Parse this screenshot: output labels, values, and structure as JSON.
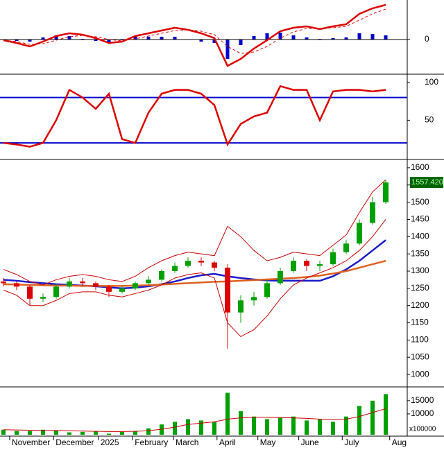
{
  "chart_data": [
    {
      "type": "macd",
      "xlim": [
        -0.263,
        30.63
      ],
      "ylim": [
        -48,
        57
      ],
      "yticks": [
        0
      ],
      "macd": {
        "color": "#dd0000",
        "values": [
          -1,
          -5,
          -10,
          -3,
          5,
          9,
          7,
          2,
          -5,
          -3,
          5,
          9,
          13,
          17,
          14,
          9,
          2,
          -38,
          -28,
          -13,
          -1,
          12,
          17,
          19,
          15,
          19,
          22,
          37,
          45,
          50
        ]
      },
      "signal": {
        "color": "#dd0000",
        "values": [
          -1,
          -3,
          -7,
          -6,
          -1,
          4,
          6,
          4,
          0,
          -2,
          1,
          5,
          9,
          13,
          14,
          12,
          7,
          -10,
          -20,
          -18,
          -10,
          2,
          11,
          16,
          16,
          17,
          19,
          28,
          37,
          44
        ]
      },
      "histogram": {
        "color": "#0000cc",
        "values": [
          0,
          -2,
          -3,
          3,
          6,
          5,
          1,
          -2,
          -5,
          -1,
          4,
          4,
          4,
          4,
          0,
          -3,
          -5,
          -28,
          -8,
          5,
          9,
          10,
          6,
          3,
          -1,
          2,
          3,
          9,
          8,
          6
        ]
      }
    },
    {
      "type": "stochastic",
      "xlim": [
        -0.263,
        30.63
      ],
      "ylim": [
        0,
        108
      ],
      "yticks": [
        100,
        50
      ],
      "hlines": [
        80,
        20
      ],
      "hline_color": "#0000cc",
      "line": {
        "color": "#dd0000",
        "values": [
          20,
          18,
          15,
          20,
          50,
          90,
          80,
          65,
          85,
          25,
          20,
          60,
          85,
          90,
          90,
          85,
          70,
          18,
          45,
          55,
          60,
          95,
          90,
          90,
          50,
          88,
          90,
          90,
          88,
          90
        ]
      }
    },
    {
      "type": "candlestick",
      "xlim": [
        -0.263,
        30.63
      ],
      "ylim": [
        968,
        1620
      ],
      "yticks": [
        1600,
        1550,
        1500,
        1450,
        1400,
        1350,
        1300,
        1250,
        1200,
        1150,
        1100,
        1050,
        1000
      ],
      "up_color": "#00a000",
      "down_color": "#dd0000",
      "open": [
        1270,
        1265,
        1255,
        1220,
        1225,
        1255,
        1270,
        1265,
        1255,
        1240,
        1250,
        1265,
        1275,
        1300,
        1315,
        1330,
        1325,
        1310,
        1180,
        1215,
        1225,
        1265,
        1300,
        1330,
        1315,
        1320,
        1355,
        1380,
        1440,
        1500
      ],
      "high": [
        1280,
        1270,
        1260,
        1235,
        1265,
        1280,
        1280,
        1270,
        1260,
        1255,
        1270,
        1285,
        1305,
        1325,
        1340,
        1340,
        1330,
        1320,
        1230,
        1240,
        1275,
        1310,
        1340,
        1335,
        1330,
        1365,
        1390,
        1450,
        1515,
        1565
      ],
      "low": [
        1255,
        1245,
        1200,
        1210,
        1220,
        1250,
        1255,
        1245,
        1225,
        1235,
        1245,
        1260,
        1270,
        1295,
        1310,
        1315,
        1300,
        1075,
        1150,
        1200,
        1220,
        1260,
        1295,
        1300,
        1300,
        1315,
        1350,
        1375,
        1435,
        1495
      ],
      "close": [
        1265,
        1255,
        1220,
        1225,
        1255,
        1270,
        1265,
        1255,
        1240,
        1250,
        1265,
        1275,
        1300,
        1315,
        1330,
        1325,
        1310,
        1180,
        1215,
        1225,
        1265,
        1300,
        1330,
        1315,
        1320,
        1355,
        1380,
        1440,
        1500,
        1557.42
      ],
      "last_price": {
        "value": 1557.42,
        "label": "1557.420"
      },
      "lines": [
        {
          "color": "#1a1acc",
          "width": 2.5,
          "values": [
            1275,
            1272,
            1268,
            1265,
            1262,
            1260,
            1258,
            1256,
            1253,
            1250,
            1252,
            1256,
            1262,
            1270,
            1280,
            1288,
            1292,
            1285,
            1280,
            1276,
            1273,
            1272,
            1272,
            1272,
            1272,
            1285,
            1305,
            1330,
            1360,
            1390
          ]
        },
        {
          "color": "#e06020",
          "width": 2.5,
          "values": [
            1262,
            1261,
            1260,
            1259,
            1258,
            1258,
            1257,
            1257,
            1257,
            1257,
            1258,
            1259,
            1261,
            1263,
            1265,
            1267,
            1269,
            1270,
            1272,
            1274,
            1276,
            1278,
            1280,
            1283,
            1287,
            1293,
            1300,
            1310,
            1320,
            1330
          ]
        },
        {
          "color": "#cc0000",
          "width": 1,
          "values": [
            1305,
            1290,
            1270,
            1260,
            1275,
            1285,
            1290,
            1285,
            1275,
            1270,
            1285,
            1310,
            1330,
            1345,
            1355,
            1350,
            1345,
            1430,
            1400,
            1360,
            1330,
            1340,
            1355,
            1350,
            1345,
            1375,
            1405,
            1470,
            1530,
            1565
          ]
        },
        {
          "color": "#cc0000",
          "width": 1,
          "values": [
            1245,
            1230,
            1200,
            1200,
            1215,
            1235,
            1240,
            1240,
            1230,
            1225,
            1235,
            1245,
            1260,
            1280,
            1290,
            1295,
            1280,
            1150,
            1110,
            1130,
            1170,
            1220,
            1260,
            1280,
            1295,
            1310,
            1330,
            1360,
            1400,
            1450
          ]
        }
      ]
    },
    {
      "type": "volume",
      "xlim": [
        -0.263,
        30.63
      ],
      "ylim": [
        2100,
        19700
      ],
      "yticks": [
        15000,
        10000
      ],
      "unit_label": "x100000",
      "color": "#00a000",
      "values": [
        4000,
        3500,
        3500,
        4000,
        3800,
        3000,
        3200,
        3500,
        2500,
        3200,
        3500,
        4500,
        6000,
        7000,
        8000,
        7500,
        7000,
        18000,
        11000,
        9000,
        8000,
        8500,
        9000,
        7500,
        8000,
        7000,
        9000,
        13000,
        15000,
        17500
      ],
      "average": {
        "color": "#cc0000",
        "values": [
          4000,
          3900,
          3800,
          3700,
          3700,
          3600,
          3500,
          3400,
          3300,
          3300,
          3400,
          3600,
          4200,
          5000,
          6000,
          6500,
          7000,
          8000,
          8500,
          8700,
          8700,
          8600,
          8500,
          8300,
          8000,
          7900,
          8000,
          9000,
          10500,
          12000
        ]
      },
      "xticks": [
        {
          "value": 0.47,
          "label": "November"
        },
        {
          "value": 3.8,
          "label": "December"
        },
        {
          "value": 7.2,
          "label": "2025"
        },
        {
          "value": 9.8,
          "label": "February"
        },
        {
          "value": 12.9,
          "label": "March"
        },
        {
          "value": 16.2,
          "label": "April"
        },
        {
          "value": 19.3,
          "label": "May"
        },
        {
          "value": 22.4,
          "label": "June"
        },
        {
          "value": 25.7,
          "label": "July"
        },
        {
          "value": 29.3,
          "label": "Aug"
        }
      ]
    }
  ]
}
